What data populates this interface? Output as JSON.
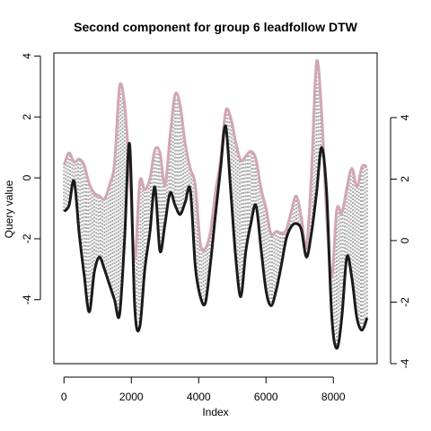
{
  "chart_data": {
    "type": "line",
    "title": "Second component for group 6 leadfollow DTW",
    "xlabel": "Index",
    "ylabel": "Query value",
    "xlim": [
      -300,
      9300
    ],
    "ylim_left": [
      -6.1,
      4.1
    ],
    "ylim_right": [
      -4.0,
      6.1
    ],
    "x_ticks": [
      0,
      2000,
      4000,
      6000,
      8000
    ],
    "y_ticks_left": [
      -4,
      -2,
      0,
      2,
      4
    ],
    "y_ticks_right": [
      -4,
      -2,
      0,
      2,
      4
    ],
    "colors": {
      "query": "#1a1a1a",
      "reference": "#d2a6b3",
      "connections": "#a8a8a8"
    },
    "series": [
      {
        "axis": "left",
        "x": [
          0,
          150,
          300,
          450,
          600,
          750,
          900,
          1050,
          1200,
          1350,
          1500,
          1650,
          1800,
          1950,
          2100,
          2250,
          2400,
          2550,
          2700,
          2850,
          3000,
          3150,
          3300,
          3450,
          3600,
          3750,
          3900,
          4050,
          4200,
          4350,
          4500,
          4650,
          4800,
          4950,
          5100,
          5250,
          5400,
          5550,
          5700,
          5850,
          6000,
          6150,
          6300,
          6450,
          6600,
          6750,
          6900,
          7050,
          7200,
          7350,
          7500,
          7650,
          7800,
          7950,
          8100,
          8250,
          8400,
          8550,
          8700,
          8850,
          9000
        ],
        "values": [
          -1.1,
          -0.9,
          -0.1,
          -1.8,
          -3.2,
          -4.4,
          -3.1,
          -2.6,
          -3.0,
          -3.5,
          -4.0,
          -4.5,
          -2.0,
          1.1,
          -4.2,
          -4.9,
          -3.0,
          -1.8,
          -0.3,
          -2.4,
          -1.5,
          -0.5,
          -0.9,
          -1.2,
          -0.8,
          -0.4,
          -2.9,
          -3.9,
          -4.1,
          -2.8,
          -1.2,
          0.3,
          1.7,
          -0.4,
          -2.6,
          -3.9,
          -2.4,
          -1.5,
          -0.9,
          -2.3,
          -3.7,
          -4.2,
          -3.7,
          -2.9,
          -2.0,
          -1.6,
          -1.5,
          -1.7,
          -2.6,
          -1.8,
          -0.5,
          1.0,
          -0.5,
          -4.5,
          -5.6,
          -4.6,
          -2.6,
          -3.3,
          -4.6,
          -5.0,
          -4.6
        ]
      },
      {
        "axis": "right",
        "x": [
          0,
          150,
          300,
          450,
          600,
          750,
          900,
          1050,
          1200,
          1350,
          1500,
          1650,
          1800,
          1950,
          2100,
          2250,
          2400,
          2550,
          2700,
          2850,
          3000,
          3150,
          3300,
          3450,
          3600,
          3750,
          3900,
          4050,
          4200,
          4350,
          4500,
          4650,
          4800,
          4950,
          5100,
          5250,
          5400,
          5550,
          5700,
          5850,
          6000,
          6150,
          6300,
          6450,
          6600,
          6750,
          6900,
          7050,
          7200,
          7350,
          7500,
          7650,
          7800,
          7950,
          8100,
          8250,
          8400,
          8550,
          8700,
          8850,
          9000
        ],
        "values": [
          2.45,
          2.85,
          2.55,
          2.65,
          2.45,
          1.85,
          1.55,
          1.45,
          1.35,
          1.8,
          2.5,
          5.0,
          4.4,
          2.2,
          -0.6,
          1.9,
          1.65,
          2.0,
          2.95,
          2.85,
          1.8,
          3.4,
          4.75,
          4.4,
          3.15,
          2.35,
          1.8,
          -0.1,
          -0.25,
          0.3,
          1.6,
          2.6,
          4.2,
          4.0,
          3.2,
          2.6,
          2.75,
          2.9,
          2.65,
          1.7,
          1.05,
          0.2,
          0.3,
          0.25,
          0.35,
          0.95,
          1.45,
          0.75,
          -0.2,
          2.2,
          5.8,
          4.2,
          0.8,
          -1.2,
          1.0,
          0.9,
          1.7,
          2.35,
          1.75,
          2.4,
          2.4
        ]
      }
    ]
  }
}
